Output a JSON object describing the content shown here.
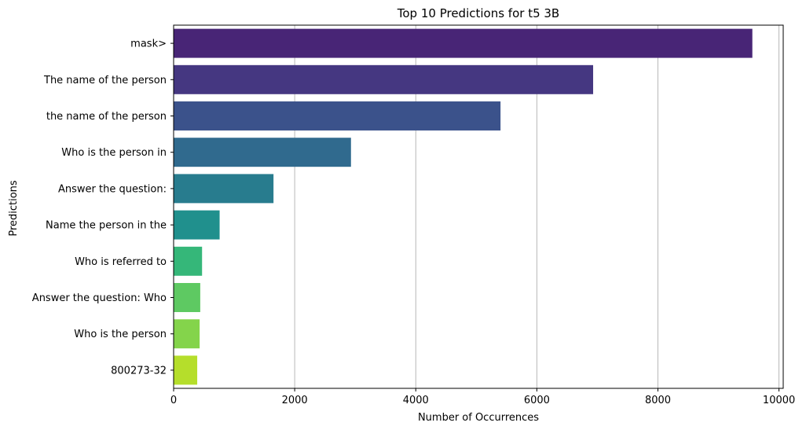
{
  "chart_data": {
    "type": "bar",
    "orientation": "horizontal",
    "title": "Top 10 Predictions for t5 3B",
    "xlabel": "Number of Occurrences",
    "ylabel": "Predictions",
    "categories": [
      "mask>",
      "The name of the person",
      "the name of the person",
      "Who is the person in",
      "Answer the question:",
      "Name the person in the",
      "Who is referred to",
      "Answer the question: Who",
      "Who is the person",
      "800273-32"
    ],
    "values": [
      9560,
      6930,
      5400,
      2930,
      1650,
      760,
      470,
      440,
      430,
      390
    ],
    "colors": [
      "#482576",
      "#453781",
      "#3b528b",
      "#306a8e",
      "#287c8e",
      "#20908d",
      "#35b779",
      "#5ec962",
      "#84d44b",
      "#b5de2b"
    ],
    "xlim": [
      0,
      10070
    ],
    "xticks": [
      0,
      2000,
      4000,
      6000,
      8000,
      10000
    ],
    "xtick_labels": [
      "0",
      "2000",
      "4000",
      "6000",
      "8000",
      "10000"
    ],
    "grid": "x-major",
    "legend": "none"
  }
}
